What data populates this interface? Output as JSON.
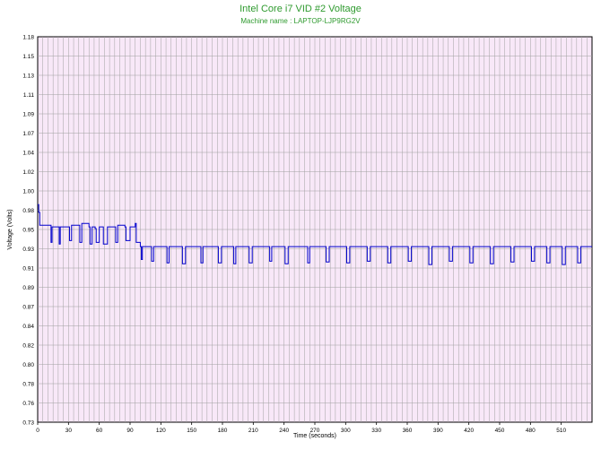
{
  "chart_data": {
    "type": "line",
    "title": "Intel Core i7 VID #2 Voltage",
    "subtitle": "Machine name : LAPTOP-LJP9RG2V",
    "xlabel": "Time (seconds)",
    "ylabel": "Voltage (Volts)",
    "xlim": [
      0,
      540
    ],
    "ylim": [
      0.73,
      1.18
    ],
    "x_ticks": [
      "0",
      "30",
      "60",
      "90",
      "120",
      "150",
      "180",
      "210",
      "240",
      "270",
      "300",
      "330",
      "360",
      "390",
      "420",
      "450",
      "480",
      "510"
    ],
    "y_ticks": [
      "1.18",
      "1.15",
      "1.13",
      "1.11",
      "1.09",
      "1.07",
      "1.04",
      "1.02",
      "1.00",
      "0.98",
      "0.95",
      "0.93",
      "0.91",
      "0.89",
      "0.87",
      "0.84",
      "0.82",
      "0.80",
      "0.78",
      "0.76",
      "0.73"
    ],
    "grid": true,
    "colors": {
      "line": "#0000cc",
      "background": "#f8e8f8",
      "grid": "#a0a0a0",
      "title": "#2e9a2e"
    },
    "series": [
      {
        "values": [
          [
            0,
            0.984
          ],
          [
            1,
            0.975
          ],
          [
            2,
            0.96
          ],
          [
            12,
            0.96
          ],
          [
            13,
            0.94
          ],
          [
            14,
            0.958
          ],
          [
            20,
            0.958
          ],
          [
            21,
            0.938
          ],
          [
            22,
            0.958
          ],
          [
            30,
            0.958
          ],
          [
            31,
            0.942
          ],
          [
            33,
            0.96
          ],
          [
            40,
            0.96
          ],
          [
            41,
            0.94
          ],
          [
            43,
            0.962
          ],
          [
            50,
            0.958
          ],
          [
            51,
            0.938
          ],
          [
            53,
            0.958
          ],
          [
            56,
            0.956
          ],
          [
            57,
            0.94
          ],
          [
            60,
            0.958
          ],
          [
            63,
            0.958
          ],
          [
            64,
            0.938
          ],
          [
            68,
            0.958
          ],
          [
            75,
            0.958
          ],
          [
            76,
            0.94
          ],
          [
            78,
            0.96
          ],
          [
            85,
            0.958
          ],
          [
            86,
            0.942
          ],
          [
            90,
            0.958
          ],
          [
            95,
            0.962
          ],
          [
            96,
            0.94
          ],
          [
            100,
            0.935
          ],
          [
            101,
            0.92
          ],
          [
            102,
            0.935
          ],
          [
            110,
            0.935
          ],
          [
            111,
            0.918
          ],
          [
            113,
            0.935
          ],
          [
            125,
            0.935
          ],
          [
            126,
            0.916
          ],
          [
            128,
            0.935
          ],
          [
            140,
            0.935
          ],
          [
            141,
            0.915
          ],
          [
            144,
            0.935
          ],
          [
            158,
            0.935
          ],
          [
            159,
            0.916
          ],
          [
            161,
            0.935
          ],
          [
            175,
            0.935
          ],
          [
            176,
            0.916
          ],
          [
            179,
            0.935
          ],
          [
            190,
            0.935
          ],
          [
            191,
            0.915
          ],
          [
            193,
            0.935
          ],
          [
            205,
            0.935
          ],
          [
            206,
            0.916
          ],
          [
            209,
            0.935
          ],
          [
            225,
            0.935
          ],
          [
            226,
            0.918
          ],
          [
            228,
            0.935
          ],
          [
            240,
            0.935
          ],
          [
            241,
            0.915
          ],
          [
            244,
            0.935
          ],
          [
            262,
            0.935
          ],
          [
            263,
            0.916
          ],
          [
            265,
            0.935
          ],
          [
            280,
            0.935
          ],
          [
            281,
            0.917
          ],
          [
            284,
            0.935
          ],
          [
            300,
            0.935
          ],
          [
            301,
            0.916
          ],
          [
            304,
            0.935
          ],
          [
            320,
            0.935
          ],
          [
            321,
            0.918
          ],
          [
            324,
            0.935
          ],
          [
            340,
            0.935
          ],
          [
            341,
            0.916
          ],
          [
            344,
            0.935
          ],
          [
            360,
            0.935
          ],
          [
            361,
            0.918
          ],
          [
            364,
            0.935
          ],
          [
            380,
            0.935
          ],
          [
            381,
            0.914
          ],
          [
            384,
            0.935
          ],
          [
            400,
            0.935
          ],
          [
            401,
            0.918
          ],
          [
            404,
            0.935
          ],
          [
            420,
            0.935
          ],
          [
            421,
            0.916
          ],
          [
            424,
            0.935
          ],
          [
            440,
            0.935
          ],
          [
            441,
            0.915
          ],
          [
            444,
            0.935
          ],
          [
            460,
            0.935
          ],
          [
            461,
            0.917
          ],
          [
            464,
            0.935
          ],
          [
            480,
            0.935
          ],
          [
            481,
            0.918
          ],
          [
            484,
            0.935
          ],
          [
            495,
            0.935
          ],
          [
            496,
            0.916
          ],
          [
            499,
            0.935
          ],
          [
            510,
            0.935
          ],
          [
            511,
            0.914
          ],
          [
            514,
            0.935
          ],
          [
            525,
            0.935
          ],
          [
            526,
            0.916
          ],
          [
            529,
            0.935
          ],
          [
            540,
            0.935
          ]
        ]
      }
    ]
  }
}
